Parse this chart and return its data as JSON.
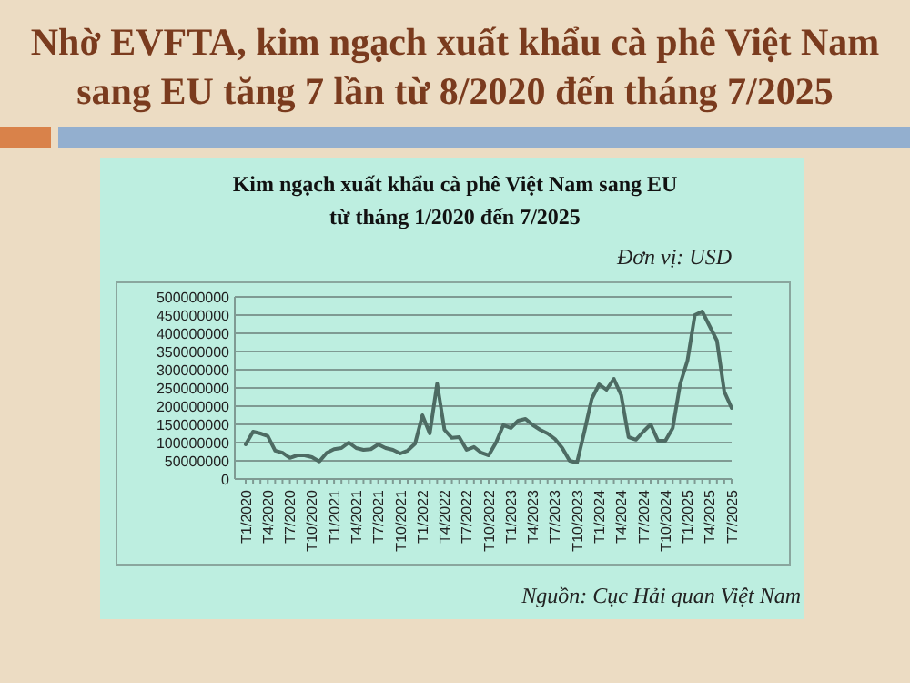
{
  "chart_data": {
    "type": "line",
    "title": "Nhờ EVFTA, kim ngạch xuất khẩu cà phê Việt Nam sang EU tăng 7 lần từ 8/2020 đến tháng 7/2025",
    "subtitle": "Kim ngạch xuất khẩu cà phê Việt Nam sang EU từ tháng 1/2020 đến 7/2025",
    "annotations": [
      "Đơn vị: USD",
      "Nguồn: Cục Hải quan Việt Nam"
    ],
    "categories": [
      "T1/2020",
      null,
      null,
      "T4/2020",
      null,
      null,
      "T7/2020",
      null,
      null,
      "T10/2020",
      null,
      null,
      "T1/2021",
      null,
      null,
      "T4/2021",
      null,
      null,
      "T7/2021",
      null,
      null,
      "T10/2021",
      null,
      null,
      "T1/2022",
      null,
      null,
      "T4/2022",
      null,
      null,
      "T7/2022",
      null,
      null,
      "T10/2022",
      null,
      null,
      "T1/2023",
      null,
      null,
      "T4/2023",
      null,
      null,
      "T7/2023",
      null,
      null,
      "T10/2023",
      null,
      null,
      "T1/2024",
      null,
      null,
      "T4/2024",
      null,
      null,
      "T7/2024",
      null,
      null,
      "T10/2024",
      null,
      null,
      "T1/2025",
      null,
      null,
      "T4/2025",
      null,
      null,
      "T7/2025"
    ],
    "series": [
      {
        "color": "#4d6b63",
        "values": [
          95000000,
          130000000,
          125000000,
          118000000,
          78000000,
          72000000,
          58000000,
          65000000,
          65000000,
          60000000,
          48000000,
          72000000,
          82000000,
          85000000,
          100000000,
          85000000,
          80000000,
          82000000,
          95000000,
          85000000,
          80000000,
          70000000,
          78000000,
          97000000,
          175000000,
          125000000,
          262000000,
          135000000,
          113000000,
          115000000,
          80000000,
          88000000,
          72000000,
          65000000,
          100000000,
          148000000,
          140000000,
          160000000,
          165000000,
          148000000,
          135000000,
          125000000,
          110000000,
          85000000,
          50000000,
          45000000,
          130000000,
          220000000,
          260000000,
          245000000,
          275000000,
          230000000,
          115000000,
          108000000,
          130000000,
          150000000,
          105000000,
          105000000,
          140000000,
          260000000,
          325000000,
          450000000,
          460000000,
          420000000,
          380000000,
          240000000,
          195000000
        ]
      }
    ],
    "ylim": [
      0,
      500000000
    ],
    "yticks": [
      0,
      50000000,
      100000000,
      150000000,
      200000000,
      250000000,
      300000000,
      350000000,
      400000000,
      450000000,
      500000000
    ],
    "grid": "y",
    "marker": "none",
    "line_style": "solid"
  }
}
